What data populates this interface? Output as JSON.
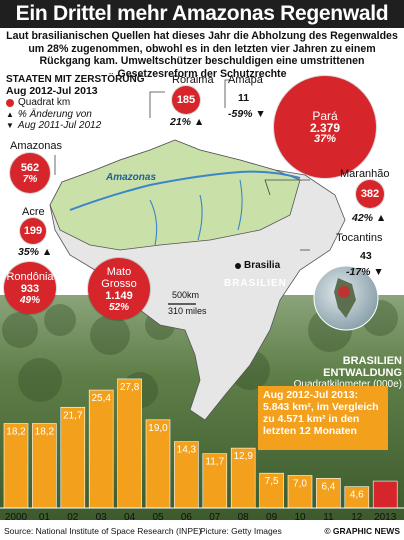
{
  "header": {
    "title": "Ein Drittel mehr Amazonas Regenwald zerstört",
    "subtitle": "Laut brasilianischen Quellen hat dieses Jahr die Abholzung des Regenwaldes um 28% zugenommen, obwohl es in den letzten vier Jahren zu einem Rückgang kam. Umweltschützer beschuldigen eine umstrittenen Gesetzesreform der Schutzrechte"
  },
  "legend": {
    "title_line1": "Staaten mit Zerstörung",
    "title_line2": "Aug 2012-Jul 2013",
    "item_area": "Quadrat km",
    "item_change": "% Änderung von",
    "item_period": "Aug 2011-Jul 2012"
  },
  "states": [
    {
      "name": "Amazonas",
      "value": "562",
      "change": "7%",
      "dir": "up"
    },
    {
      "name": "Acre",
      "value": "199",
      "change": "35%",
      "dir": "up"
    },
    {
      "name": "Rondônia",
      "value": "933",
      "change": "49%",
      "dir": "up"
    },
    {
      "name": "Mato Grosso",
      "value": "1.149",
      "change": "52%",
      "dir": "up"
    },
    {
      "name": "Roraima",
      "value": "185",
      "change": "21%",
      "dir": "up"
    },
    {
      "name": "Amapá",
      "value": "11",
      "change": "-59%",
      "dir": "down"
    },
    {
      "name": "Pará",
      "value": "2.379",
      "change": "37%",
      "dir": "up"
    },
    {
      "name": "Maranhão",
      "value": "382",
      "change": "42%",
      "dir": "up"
    },
    {
      "name": "Tocantins",
      "value": "43",
      "change": "-17%",
      "dir": "down"
    }
  ],
  "map": {
    "river": "Amazonas",
    "capital": "Brasilia",
    "country": "BRASILIEN",
    "scale_km": "500km",
    "scale_mi": "310 miles"
  },
  "chart_title": {
    "line1": "Brasilien Entwaldung",
    "line2": "Quadratkilometer (000e)"
  },
  "callout": {
    "text": "Aug 2012-Jul 2013: 5.843 km², im Vergleich zu 4.571 km² in den letzten 12 Monaten"
  },
  "chart_data": {
    "type": "bar",
    "categories": [
      "2000",
      "01",
      "02",
      "03",
      "04",
      "05",
      "06",
      "07",
      "08",
      "09",
      "10",
      "11",
      "12",
      "2013"
    ],
    "values": [
      18.2,
      18.2,
      21.7,
      25.4,
      27.8,
      19.0,
      14.3,
      11.7,
      12.9,
      7.5,
      7.0,
      6.4,
      4.6,
      5.8
    ],
    "value_labels": [
      "18,2",
      "18,2",
      "21,7",
      "25,4",
      "27,8",
      "19,0",
      "14,3",
      "11,7",
      "12,9",
      "7,5",
      "7,0",
      "6,4",
      "4,6",
      ""
    ],
    "title": "Brasilien Entwaldung",
    "ylabel": "Quadratkilometer (000e)",
    "ylim": [
      0,
      28
    ],
    "colors": {
      "bar": "#f3a01c",
      "highlight": "#d7262b"
    }
  },
  "footer": {
    "source": "Source: National Institute of Space Research (INPE)",
    "picture": "Picture: Getty Images",
    "brand": "© GRAPHIC NEWS"
  }
}
